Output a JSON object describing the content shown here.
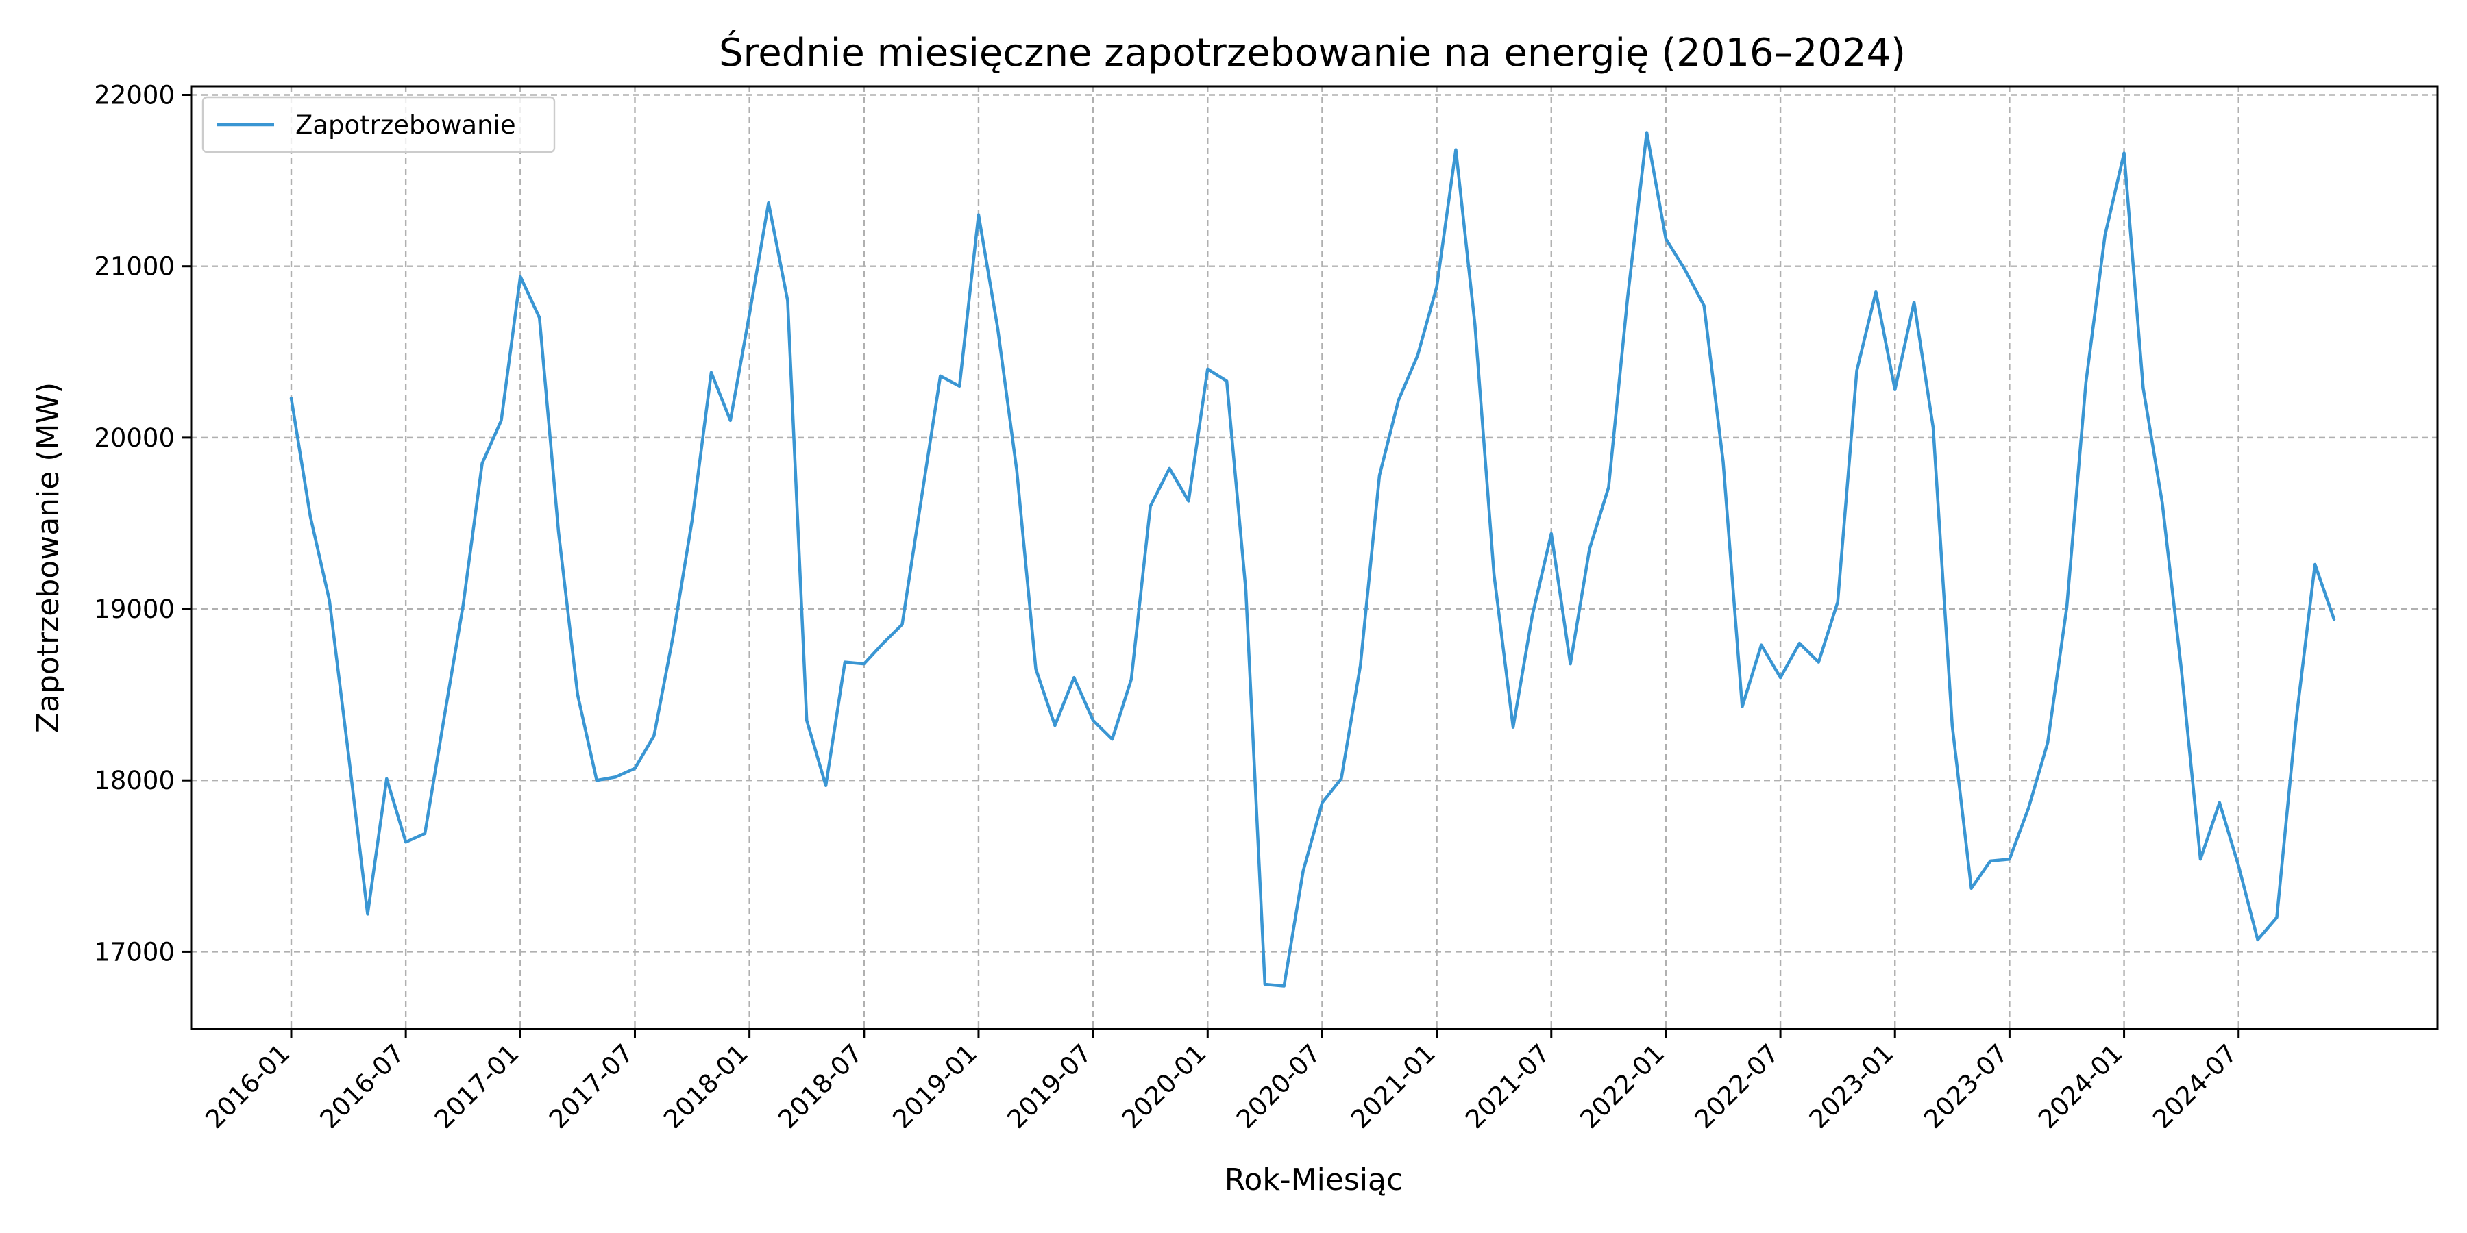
{
  "chart_data": {
    "type": "line",
    "title": "Średnie miesięczne zapotrzebowanie na energię (2016–2024)",
    "xlabel": "Rok-Miesiąc",
    "ylabel": "Zapotrzebowanie (MW)",
    "ylim": [
      16550,
      22050
    ],
    "yticks": [
      17000,
      18000,
      19000,
      20000,
      21000,
      22000
    ],
    "xtick_labels": [
      "2016-01",
      "2016-07",
      "2017-01",
      "2017-07",
      "2018-01",
      "2018-07",
      "2019-01",
      "2019-07",
      "2020-01",
      "2020-07",
      "2021-01",
      "2021-07",
      "2022-01",
      "2022-07",
      "2023-01",
      "2023-07",
      "2024-01",
      "2024-07"
    ],
    "grid": true,
    "legend": {
      "placement": "upper-left"
    },
    "x_start": "2016-01",
    "series": [
      {
        "name": "Zapotrzebowanie",
        "color": "#3a96d3",
        "values": [
          20230,
          19540,
          19050,
          18150,
          17220,
          18010,
          17640,
          17690,
          18360,
          19020,
          19850,
          20100,
          20940,
          20700,
          19450,
          18500,
          18000,
          18020,
          18070,
          18260,
          18840,
          19520,
          20380,
          20100,
          20720,
          21370,
          20800,
          18350,
          17970,
          18690,
          18680,
          18800,
          18910,
          19640,
          20360,
          20300,
          21300,
          20640,
          19810,
          18650,
          18320,
          18600,
          18350,
          18240,
          18590,
          19600,
          19820,
          19630,
          20400,
          20330,
          19110,
          16810,
          16800,
          17470,
          17870,
          18010,
          18670,
          19780,
          20220,
          20480,
          20880,
          21680,
          20660,
          19200,
          18310,
          18960,
          19440,
          18680,
          19350,
          19710,
          20820,
          21780,
          21160,
          20980,
          20770,
          19860,
          18430,
          18790,
          18600,
          18800,
          18690,
          19040,
          20390,
          20850,
          20280,
          20790,
          20060,
          18320,
          17370,
          17530,
          17540,
          17840,
          18220,
          19010,
          20320,
          21180,
          21660,
          20290,
          19620,
          18650,
          17540,
          17870,
          17500,
          17070,
          17200,
          18340,
          19260,
          18940
        ]
      }
    ]
  }
}
